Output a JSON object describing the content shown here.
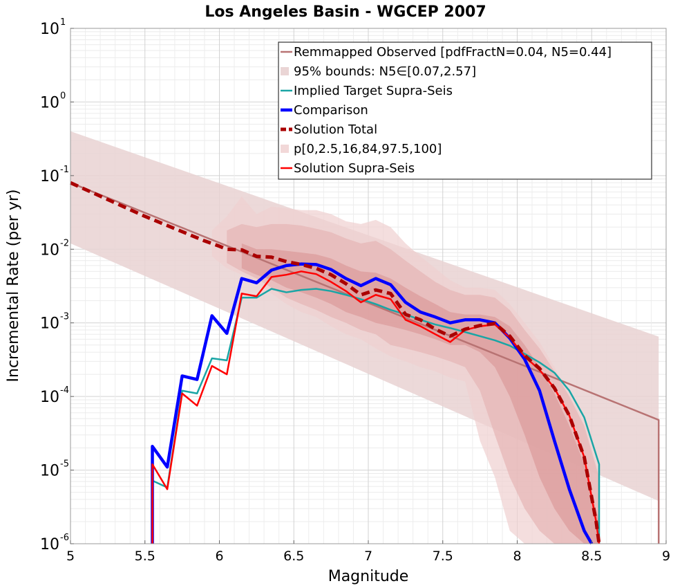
{
  "chart_data": {
    "type": "line",
    "title": "Los Angeles Basin - WGCEP 2007",
    "xlabel": "Magnitude",
    "ylabel": "Incremental Rate (per yr)",
    "xlim": [
      5,
      9
    ],
    "ylim": [
      1e-06,
      10
    ],
    "yscale": "log",
    "grid": true,
    "legend_position": "top-right",
    "x_ticks": [
      "5",
      "5.5",
      "6",
      "6.5",
      "7",
      "7.5",
      "8",
      "8.5",
      "9"
    ],
    "y_ticks": [
      {
        "base": "10",
        "exp": "1"
      },
      {
        "base": "10",
        "exp": "0"
      },
      {
        "base": "10",
        "exp": "-1"
      },
      {
        "base": "10",
        "exp": "-2"
      },
      {
        "base": "10",
        "exp": "-3"
      },
      {
        "base": "10",
        "exp": "-4"
      },
      {
        "base": "10",
        "exp": "-5"
      },
      {
        "base": "10",
        "exp": "-6"
      }
    ],
    "legend": [
      {
        "label": "Remmapped Observed [pdfFractN=0.04, N5=0.44]",
        "color": "#b87373",
        "style": "line",
        "width": 2.5
      },
      {
        "label": "95% bounds: N5∈[0.07,2.57]",
        "color": "#ead5d5",
        "style": "band"
      },
      {
        "label": "Implied Target Supra-Seis",
        "color": "#1aa5a5",
        "style": "line",
        "width": 2.5
      },
      {
        "label": "Comparison",
        "color": "#0000ff",
        "style": "line",
        "width": 4.5
      },
      {
        "label": "Solution Total",
        "color": "#aa0000",
        "style": "dashed",
        "width": 5
      },
      {
        "label": "p[0,2.5,16,84,97.5,100]",
        "color": "#f2d8d8",
        "style": "band"
      },
      {
        "label": "Solution Supra-Seis",
        "color": "#ff0000",
        "style": "line",
        "width": 2.5
      }
    ],
    "bands": [
      {
        "name": "95% bounds: N5∈[0.07,2.57]",
        "color": "#e9d2d2",
        "x": [
          5.0,
          8.95
        ],
        "upper": [
          0.4,
          0.00065
        ],
        "lower": [
          0.012,
          3.8e-06
        ]
      },
      {
        "name": "p 0-100",
        "color": "#f0d0d0",
        "x": [
          5.95,
          6.05,
          6.15,
          6.25,
          6.35,
          6.45,
          6.55,
          6.65,
          6.75,
          6.85,
          6.95,
          7.05,
          7.15,
          7.25,
          7.35,
          7.45,
          7.55,
          7.65,
          7.75,
          7.85,
          7.95,
          8.05,
          8.15,
          8.25,
          8.35,
          8.45,
          8.55
        ],
        "upper": [
          0.018,
          0.028,
          0.052,
          0.03,
          0.038,
          0.036,
          0.034,
          0.034,
          0.03,
          0.024,
          0.022,
          0.025,
          0.02,
          0.012,
          0.008,
          0.0055,
          0.0038,
          0.003,
          0.003,
          0.0028,
          0.0018,
          0.001,
          0.00055,
          0.00025,
          0.00011,
          4.5e-05,
          9e-06
        ],
        "lower": [
          0.008,
          0.0055,
          0.0045,
          0.0035,
          0.0025,
          0.0018,
          0.0014,
          0.0012,
          0.0009,
          0.0007,
          0.0006,
          0.00045,
          0.00035,
          0.0003,
          0.00025,
          0.00022,
          0.00018,
          0.00016,
          2.5e-05,
          8e-06,
          1.5e-06,
          1e-06,
          1e-06,
          1e-06,
          1e-06,
          1e-06,
          1e-06
        ]
      },
      {
        "name": "p 2.5-97.5",
        "color": "#e6b5b5",
        "x": [
          6.05,
          6.15,
          6.25,
          6.35,
          6.45,
          6.55,
          6.65,
          6.75,
          6.85,
          6.95,
          7.05,
          7.15,
          7.25,
          7.35,
          7.45,
          7.55,
          7.65,
          7.75,
          7.85,
          7.95,
          8.05,
          8.15,
          8.25,
          8.35,
          8.45,
          8.55
        ],
        "upper": [
          0.018,
          0.022,
          0.02,
          0.022,
          0.022,
          0.021,
          0.019,
          0.017,
          0.014,
          0.012,
          0.013,
          0.01,
          0.007,
          0.005,
          0.0036,
          0.0028,
          0.0024,
          0.0024,
          0.0022,
          0.0015,
          0.0008,
          0.00045,
          0.00022,
          0.0001,
          4e-05,
          8e-06
        ],
        "lower": [
          0.0065,
          0.005,
          0.004,
          0.003,
          0.0022,
          0.0018,
          0.0015,
          0.0012,
          0.001,
          0.0008,
          0.0007,
          0.0005,
          0.00045,
          0.0004,
          0.00035,
          0.0003,
          0.00025,
          0.00012,
          3e-05,
          8e-06,
          3e-06,
          1.5e-06,
          1e-06,
          1e-06,
          1e-06,
          1e-06
        ]
      },
      {
        "name": "p 16-84",
        "color": "#dc9a9a",
        "x": [
          6.15,
          6.25,
          6.35,
          6.45,
          6.55,
          6.65,
          6.75,
          6.85,
          6.95,
          7.05,
          7.15,
          7.25,
          7.35,
          7.45,
          7.55,
          7.65,
          7.75,
          7.85,
          7.95,
          8.05,
          8.15,
          8.25,
          8.35,
          8.45,
          8.55
        ],
        "upper": [
          0.012,
          0.01,
          0.01,
          0.0095,
          0.009,
          0.0085,
          0.0075,
          0.006,
          0.005,
          0.0048,
          0.004,
          0.003,
          0.0023,
          0.0018,
          0.0014,
          0.0013,
          0.0013,
          0.0012,
          0.0009,
          0.0005,
          0.00025,
          0.00011,
          4e-05,
          1.2e-05,
          2e-06
        ],
        "lower": [
          0.0055,
          0.0045,
          0.0038,
          0.003,
          0.0026,
          0.0022,
          0.0018,
          0.0014,
          0.0012,
          0.001,
          0.0009,
          0.0008,
          0.0007,
          0.0006,
          0.0005,
          0.0005,
          0.0004,
          0.00025,
          0.0001,
          3e-05,
          8e-06,
          3e-06,
          1.5e-06,
          1e-06,
          1e-06
        ]
      }
    ],
    "series": [
      {
        "name": "Remmapped Observed [pdfFractN=0.04, N5=0.44]",
        "color": "#b87373",
        "width": 2.5,
        "dash": "",
        "x": [
          5.0,
          8.95,
          8.95
        ],
        "y": [
          0.08,
          4.8e-05,
          1e-06
        ]
      },
      {
        "name": "Implied Target Supra-Seis",
        "color": "#1aa5a5",
        "width": 2.5,
        "dash": "",
        "x": [
          5.55,
          5.55,
          5.65,
          5.75,
          5.85,
          5.95,
          6.05,
          6.15,
          6.25,
          6.35,
          6.45,
          6.55,
          6.65,
          6.75,
          6.85,
          6.95,
          7.05,
          7.15,
          7.25,
          7.35,
          7.45,
          7.55,
          7.65,
          7.75,
          7.85,
          7.95,
          8.05,
          8.15,
          8.25,
          8.35,
          8.45,
          8.55,
          8.55
        ],
        "y": [
          1e-06,
          7.2e-06,
          5.8e-06,
          0.00012,
          0.00011,
          0.00033,
          0.00031,
          0.0022,
          0.0022,
          0.0029,
          0.0026,
          0.0028,
          0.0029,
          0.0027,
          0.0024,
          0.0021,
          0.0018,
          0.0015,
          0.0013,
          0.0011,
          0.00095,
          0.00085,
          0.00075,
          0.00066,
          0.00058,
          0.00049,
          0.00038,
          0.00029,
          0.00021,
          0.00012,
          5.2e-05,
          1.2e-05,
          1e-06
        ]
      },
      {
        "name": "Comparison",
        "color": "#0000ff",
        "width": 4.5,
        "dash": "",
        "x": [
          5.55,
          5.55,
          5.65,
          5.75,
          5.85,
          5.95,
          6.05,
          6.15,
          6.25,
          6.35,
          6.45,
          6.55,
          6.65,
          6.75,
          6.85,
          6.95,
          7.05,
          7.15,
          7.25,
          7.35,
          7.45,
          7.55,
          7.65,
          7.75,
          7.85,
          7.95,
          8.05,
          8.15,
          8.25,
          8.35,
          8.45,
          8.5
        ],
        "y": [
          1e-06,
          2.1e-05,
          1.1e-05,
          0.00019,
          0.00017,
          0.00125,
          0.00072,
          0.004,
          0.0035,
          0.0052,
          0.006,
          0.0063,
          0.0062,
          0.0053,
          0.004,
          0.0032,
          0.004,
          0.0033,
          0.0019,
          0.0014,
          0.0012,
          0.001,
          0.0011,
          0.0011,
          0.001,
          0.00062,
          0.00032,
          0.00012,
          2.5e-05,
          5.5e-06,
          1.5e-06,
          1e-06
        ]
      },
      {
        "name": "Solution Supra-Seis",
        "color": "#ff0000",
        "width": 2.5,
        "dash": "",
        "x": [
          5.55,
          5.55,
          5.65,
          5.75,
          5.85,
          5.95,
          6.05,
          6.15,
          6.25,
          6.35,
          6.45,
          6.55,
          6.65,
          6.75,
          6.85,
          6.95,
          7.05,
          7.15,
          7.25,
          7.35,
          7.45,
          7.55,
          7.65,
          7.75,
          7.85,
          7.95,
          8.05,
          8.15,
          8.25,
          8.35,
          8.45,
          8.53,
          8.55
        ],
        "y": [
          1e-06,
          1.2e-05,
          5.5e-06,
          0.00011,
          7.5e-05,
          0.00026,
          0.0002,
          0.0025,
          0.0023,
          0.0042,
          0.0045,
          0.005,
          0.0046,
          0.0036,
          0.0027,
          0.0019,
          0.0024,
          0.0021,
          0.0011,
          0.0009,
          0.0007,
          0.00055,
          0.0008,
          0.0009,
          0.00095,
          0.00063,
          0.00035,
          0.00023,
          0.00013,
          5.5e-05,
          1.5e-05,
          2e-06,
          1e-06
        ]
      },
      {
        "name": "Solution Total",
        "color": "#aa0000",
        "width": 5,
        "dash": "12,7",
        "x": [
          5.0,
          5.5,
          5.9,
          6.0,
          6.05,
          6.15,
          6.25,
          6.35,
          6.45,
          6.55,
          6.65,
          6.75,
          6.85,
          6.95,
          7.05,
          7.15,
          7.25,
          7.35,
          7.45,
          7.55,
          7.65,
          7.75,
          7.85,
          7.95,
          8.05,
          8.15,
          8.25,
          8.35,
          8.45,
          8.53,
          8.55
        ],
        "y": [
          0.08,
          0.028,
          0.013,
          0.011,
          0.01,
          0.0098,
          0.008,
          0.0078,
          0.0068,
          0.0062,
          0.0055,
          0.0045,
          0.0034,
          0.0024,
          0.0028,
          0.0025,
          0.0013,
          0.0011,
          0.00082,
          0.00066,
          0.00082,
          0.00092,
          0.00098,
          0.00066,
          0.00036,
          0.00024,
          0.00013,
          5.5e-05,
          1.5e-05,
          2e-06,
          1e-06
        ]
      }
    ]
  }
}
